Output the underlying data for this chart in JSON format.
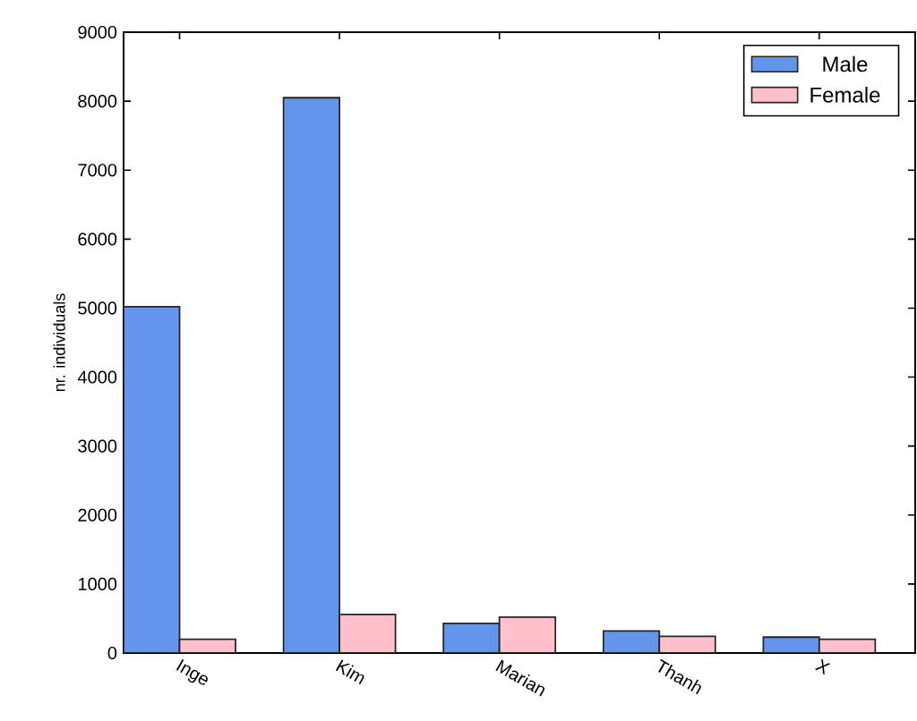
{
  "chart_data": {
    "type": "bar",
    "ylabel": "nr. individuals",
    "categories": [
      "Inge",
      "Kim",
      "Marian",
      "Thanh",
      "X"
    ],
    "series": [
      {
        "name": "Male",
        "color": "#6495ed",
        "values": [
          5020,
          8050,
          430,
          320,
          230
        ]
      },
      {
        "name": "Female",
        "color": "#ffc0cb",
        "values": [
          200,
          560,
          520,
          240,
          200
        ]
      }
    ],
    "ylim": [
      0,
      9000
    ],
    "yticks": [
      0,
      1000,
      2000,
      3000,
      4000,
      5000,
      6000,
      7000,
      8000,
      9000
    ],
    "legend": "top right",
    "grid": false
  }
}
